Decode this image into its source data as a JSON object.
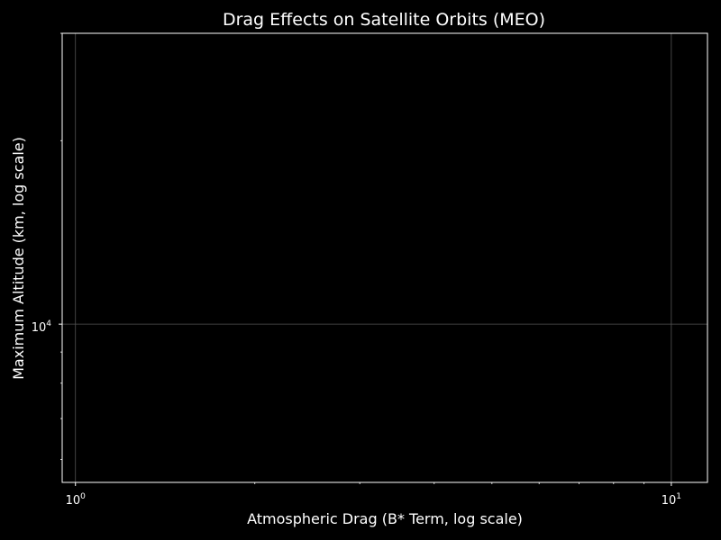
{
  "chart_data": {
    "type": "scatter",
    "title": "Drag Effects on Satellite Orbits (MEO)",
    "xlabel": "Atmospheric Drag (B* Term, log scale)",
    "ylabel": "Maximum Altitude (km, log scale)",
    "xscale": "log",
    "yscale": "log",
    "xlim": [
      0.95,
      11.5
    ],
    "ylim": [
      5500,
      30000
    ],
    "x_ticks": [
      {
        "value": 1,
        "base": "10",
        "exp": "0"
      },
      {
        "value": 10,
        "base": "10",
        "exp": "1"
      }
    ],
    "y_ticks": [
      {
        "value": 10000,
        "base": "10",
        "exp": "4"
      }
    ],
    "series": [],
    "grid": true,
    "theme": {
      "background": "#000000",
      "foreground": "#ffffff",
      "grid_color": "#555555"
    }
  }
}
